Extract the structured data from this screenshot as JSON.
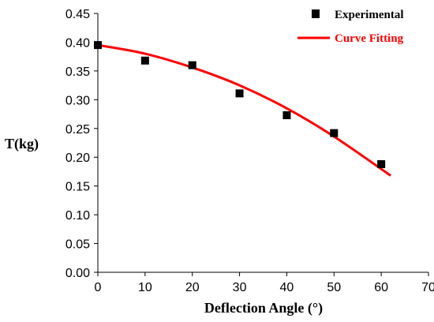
{
  "chart_data": {
    "type": "scatter",
    "xlabel": "Deflection Angle (°)",
    "ylabel": "T(kg)",
    "xlim": [
      0,
      70
    ],
    "ylim": [
      0,
      0.45
    ],
    "x_ticks": [
      "0",
      "10",
      "20",
      "30",
      "40",
      "50",
      "60",
      "70"
    ],
    "y_ticks": [
      "0.00",
      "0.05",
      "0.10",
      "0.15",
      "0.20",
      "0.25",
      "0.30",
      "0.35",
      "0.40",
      "0.45"
    ],
    "grid": false,
    "legend_position": "top-right",
    "series": [
      {
        "name": "Experimental",
        "kind": "scatter",
        "marker": "square",
        "color": "#000000",
        "x": [
          0,
          10,
          20,
          30,
          40,
          50,
          60
        ],
        "y": [
          0.395,
          0.368,
          0.36,
          0.311,
          0.273,
          0.242,
          0.188
        ]
      },
      {
        "name": "Curve Fitting",
        "kind": "line",
        "color": "#ff0000",
        "x": [
          0,
          10,
          20,
          30,
          40,
          50,
          62
        ],
        "y": [
          0.395,
          0.38,
          0.356,
          0.325,
          0.285,
          0.236,
          0.168
        ]
      }
    ]
  }
}
